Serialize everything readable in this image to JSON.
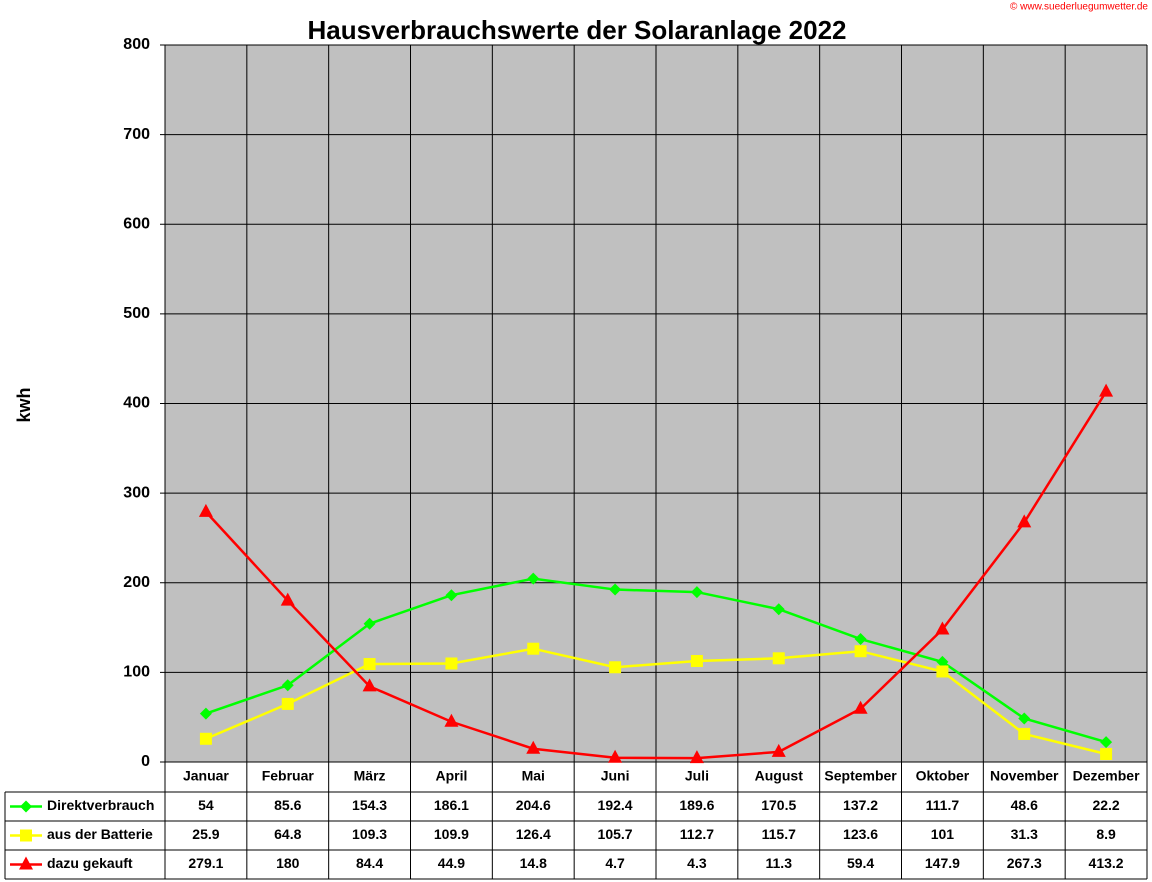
{
  "chart_data": {
    "type": "line",
    "title": "Hausverbrauchswerte der Solaranlage 2022",
    "watermark": "© www.suederluegumwetter.de",
    "y_label": "kwh",
    "categories": [
      "Januar",
      "Februar",
      "März",
      "April",
      "Mai",
      "Juni",
      "Juli",
      "August",
      "September",
      "Oktober",
      "November",
      "Dezember"
    ],
    "series": [
      {
        "name": "Direktverbrauch",
        "color": "#00ff00",
        "marker": "diamond",
        "values": [
          54,
          85.6,
          154.3,
          186.1,
          204.6,
          192.4,
          189.6,
          170.5,
          137.2,
          111.7,
          48.6,
          22.2
        ]
      },
      {
        "name": "aus der Batterie",
        "color": "#ffff00",
        "marker": "square",
        "values": [
          25.9,
          64.8,
          109.3,
          109.9,
          126.4,
          105.7,
          112.7,
          115.7,
          123.6,
          101,
          31.3,
          8.9
        ]
      },
      {
        "name": "dazu gekauft",
        "color": "#ff0000",
        "marker": "triangle",
        "values": [
          279.1,
          180,
          84.4,
          44.9,
          14.8,
          4.7,
          4.3,
          11.3,
          59.4,
          147.9,
          267.3,
          413.2
        ]
      }
    ],
    "ylim": [
      0,
      800
    ],
    "yticks": [
      0,
      100,
      200,
      300,
      400,
      500,
      600,
      700,
      800
    ],
    "grid": true
  }
}
